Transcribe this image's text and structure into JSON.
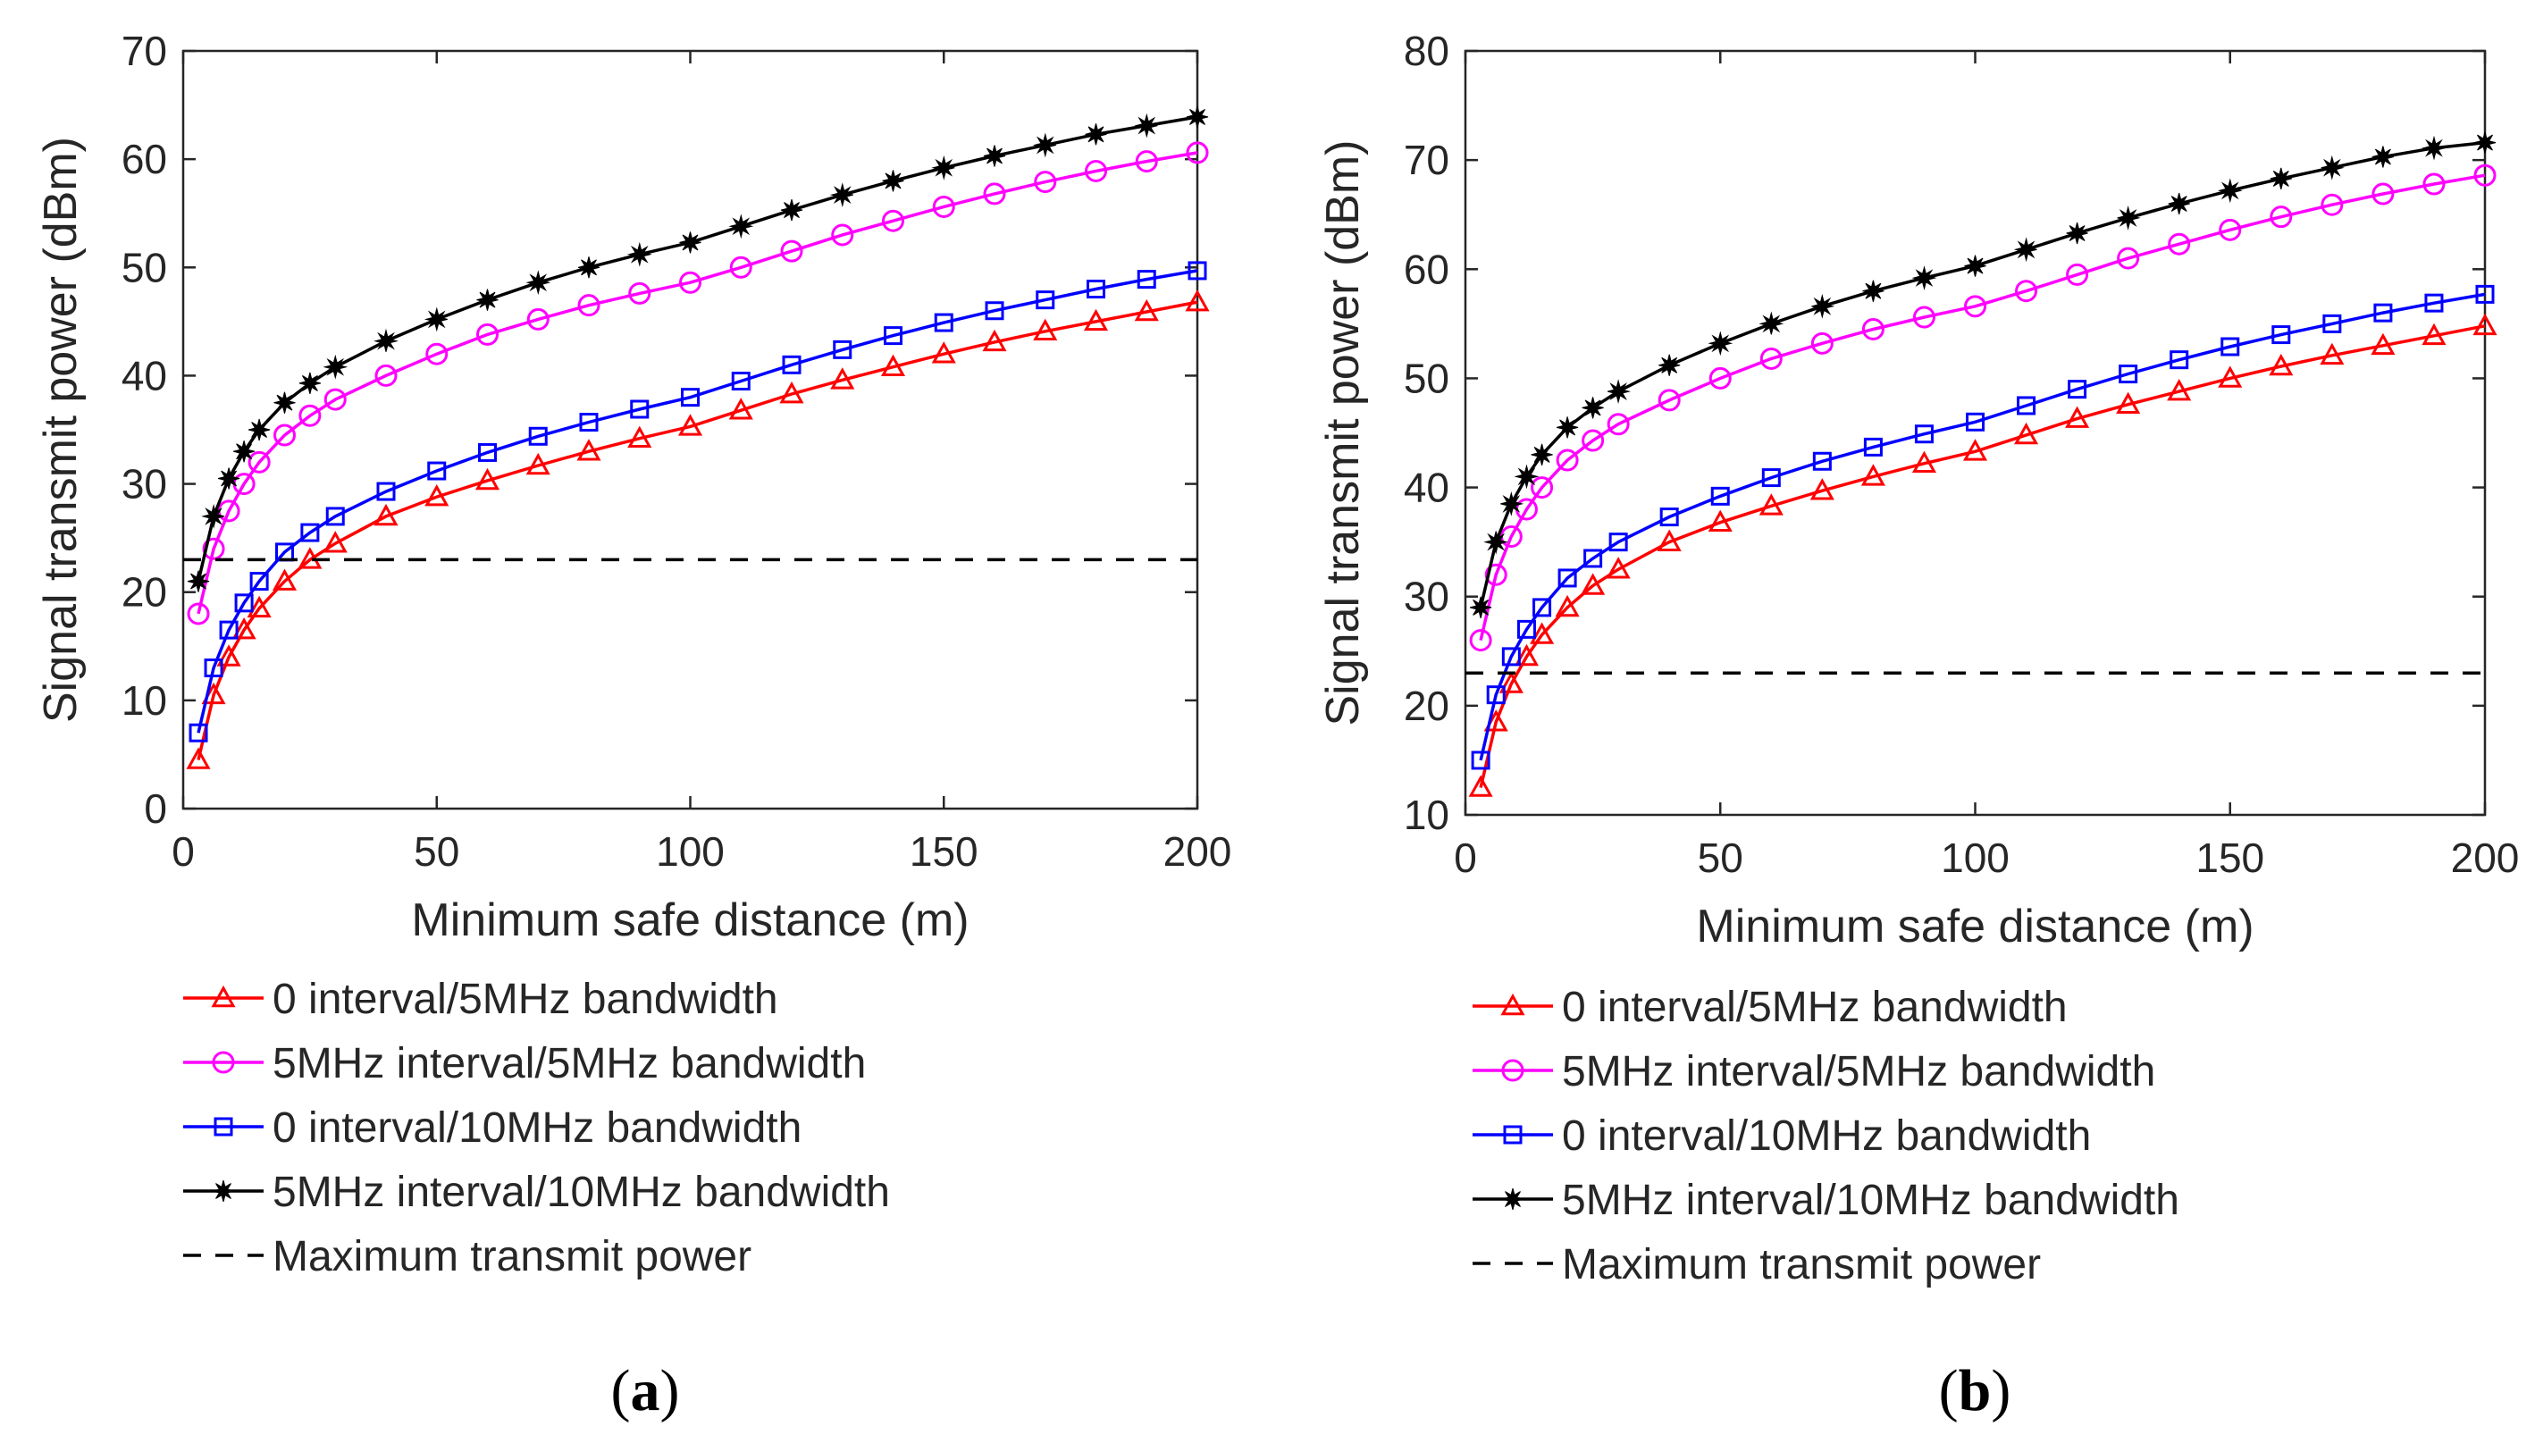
{
  "chart_data": [
    {
      "type": "line",
      "panel_label": "a",
      "xlabel": "Minimum safe distance (m)",
      "ylabel": "Signal transmit power (dBm)",
      "xlim": [
        0,
        200
      ],
      "ylim": [
        0,
        70
      ],
      "xticks": [
        "0",
        "50",
        "100",
        "150",
        "200"
      ],
      "yticks": [
        "0",
        "10",
        "20",
        "30",
        "40",
        "50",
        "60",
        "70"
      ],
      "grid": false,
      "legend_position": "below",
      "series": [
        {
          "name": "0 interval/5MHz bandwidth",
          "color": "#ff0000",
          "marker": "triangle",
          "x": [
            3,
            6,
            9,
            12,
            15,
            20,
            25,
            30,
            40,
            50,
            60,
            70,
            80,
            90,
            100,
            110,
            120,
            130,
            140,
            150,
            160,
            170,
            180,
            190,
            200
          ],
          "y": [
            4.5,
            10.5,
            14,
            16.5,
            18.5,
            21,
            23,
            24.5,
            27,
            28.8,
            30.3,
            31.7,
            33,
            34.2,
            35.3,
            36.8,
            38.3,
            39.6,
            40.8,
            42,
            43.1,
            44.1,
            45,
            45.9,
            46.8
          ]
        },
        {
          "name": "5MHz interval/5MHz bandwidth",
          "color": "#ff00ff",
          "marker": "circle",
          "x": [
            3,
            6,
            9,
            12,
            15,
            20,
            25,
            30,
            40,
            50,
            60,
            70,
            80,
            90,
            100,
            110,
            120,
            130,
            140,
            150,
            160,
            170,
            180,
            190,
            200
          ],
          "y": [
            18,
            24,
            27.5,
            30,
            32,
            34.5,
            36.3,
            37.8,
            40,
            42,
            43.8,
            45.2,
            46.5,
            47.6,
            48.6,
            50,
            51.5,
            53,
            54.3,
            55.6,
            56.8,
            57.9,
            58.9,
            59.8,
            60.6
          ]
        },
        {
          "name": "0 interval/10MHz bandwidth",
          "color": "#0000ff",
          "marker": "square",
          "x": [
            3,
            6,
            9,
            12,
            15,
            20,
            25,
            30,
            40,
            50,
            60,
            70,
            80,
            90,
            100,
            110,
            120,
            130,
            140,
            150,
            160,
            170,
            180,
            190,
            200
          ],
          "y": [
            7,
            13,
            16.5,
            19,
            21,
            23.7,
            25.5,
            27,
            29.3,
            31.2,
            32.9,
            34.4,
            35.7,
            36.9,
            38,
            39.5,
            41,
            42.4,
            43.7,
            44.9,
            46,
            47,
            48,
            48.9,
            49.7
          ]
        },
        {
          "name": "5MHz interval/10MHz bandwidth",
          "color": "#000000",
          "marker": "star",
          "x": [
            3,
            6,
            9,
            12,
            15,
            20,
            25,
            30,
            40,
            50,
            60,
            70,
            80,
            90,
            100,
            110,
            120,
            130,
            140,
            150,
            160,
            170,
            180,
            190,
            200
          ],
          "y": [
            21,
            27,
            30.5,
            33,
            35,
            37.5,
            39.3,
            40.8,
            43.2,
            45.2,
            47,
            48.6,
            50,
            51.2,
            52.3,
            53.8,
            55.3,
            56.7,
            58,
            59.2,
            60.3,
            61.3,
            62.3,
            63.1,
            63.9
          ]
        },
        {
          "name": "Maximum transmit power",
          "color": "#000000",
          "marker": "none",
          "dashed": true,
          "x": [
            0,
            200
          ],
          "y": [
            23,
            23
          ]
        }
      ]
    },
    {
      "type": "line",
      "panel_label": "b",
      "xlabel": "Minimum safe distance (m)",
      "ylabel": "Signal transmit power (dBm)",
      "xlim": [
        0,
        200
      ],
      "ylim": [
        10,
        80
      ],
      "xticks": [
        "0",
        "50",
        "100",
        "150",
        "200"
      ],
      "yticks": [
        "10",
        "20",
        "30",
        "40",
        "50",
        "60",
        "70",
        "80"
      ],
      "grid": false,
      "legend_position": "below",
      "series": [
        {
          "name": "0 interval/5MHz bandwidth",
          "color": "#ff0000",
          "marker": "triangle",
          "x": [
            3,
            6,
            9,
            12,
            15,
            20,
            25,
            30,
            40,
            50,
            60,
            70,
            80,
            90,
            100,
            110,
            120,
            130,
            140,
            150,
            160,
            170,
            180,
            190,
            200
          ],
          "y": [
            12.5,
            18.5,
            22,
            24.5,
            26.5,
            29,
            31,
            32.5,
            35,
            36.8,
            38.3,
            39.7,
            41,
            42.2,
            43.3,
            44.8,
            46.3,
            47.6,
            48.8,
            50,
            51.1,
            52.1,
            53,
            53.9,
            54.8
          ]
        },
        {
          "name": "5MHz interval/5MHz bandwidth",
          "color": "#ff00ff",
          "marker": "circle",
          "x": [
            3,
            6,
            9,
            12,
            15,
            20,
            25,
            30,
            40,
            50,
            60,
            70,
            80,
            90,
            100,
            110,
            120,
            130,
            140,
            150,
            160,
            170,
            180,
            190,
            200
          ],
          "y": [
            26,
            32,
            35.5,
            38,
            40,
            42.5,
            44.3,
            45.8,
            48,
            50,
            51.8,
            53.2,
            54.5,
            55.6,
            56.6,
            58,
            59.5,
            61,
            62.3,
            63.6,
            64.8,
            65.9,
            66.9,
            67.8,
            68.6
          ]
        },
        {
          "name": "0 interval/10MHz bandwidth",
          "color": "#0000ff",
          "marker": "square",
          "x": [
            3,
            6,
            9,
            12,
            15,
            20,
            25,
            30,
            40,
            50,
            60,
            70,
            80,
            90,
            100,
            110,
            120,
            130,
            140,
            150,
            160,
            170,
            180,
            190,
            200
          ],
          "y": [
            15,
            21,
            24.5,
            27,
            29,
            31.7,
            33.5,
            35,
            37.3,
            39.2,
            40.9,
            42.4,
            43.7,
            44.9,
            46,
            47.5,
            49,
            50.4,
            51.7,
            52.9,
            54,
            55,
            56,
            56.9,
            57.7
          ]
        },
        {
          "name": "5MHz interval/10MHz bandwidth",
          "color": "#000000",
          "marker": "star",
          "x": [
            3,
            6,
            9,
            12,
            15,
            20,
            25,
            30,
            40,
            50,
            60,
            70,
            80,
            90,
            100,
            110,
            120,
            130,
            140,
            150,
            160,
            170,
            180,
            190,
            200
          ],
          "y": [
            29,
            35,
            38.5,
            41,
            43,
            45.5,
            47.3,
            48.8,
            51.2,
            53.2,
            55,
            56.6,
            58,
            59.2,
            60.3,
            61.8,
            63.3,
            64.7,
            66,
            67.2,
            68.3,
            69.3,
            70.3,
            71.1,
            71.6
          ]
        },
        {
          "name": "Maximum transmit power",
          "color": "#000000",
          "marker": "none",
          "dashed": true,
          "x": [
            0,
            200
          ],
          "y": [
            23,
            23
          ]
        }
      ]
    }
  ]
}
